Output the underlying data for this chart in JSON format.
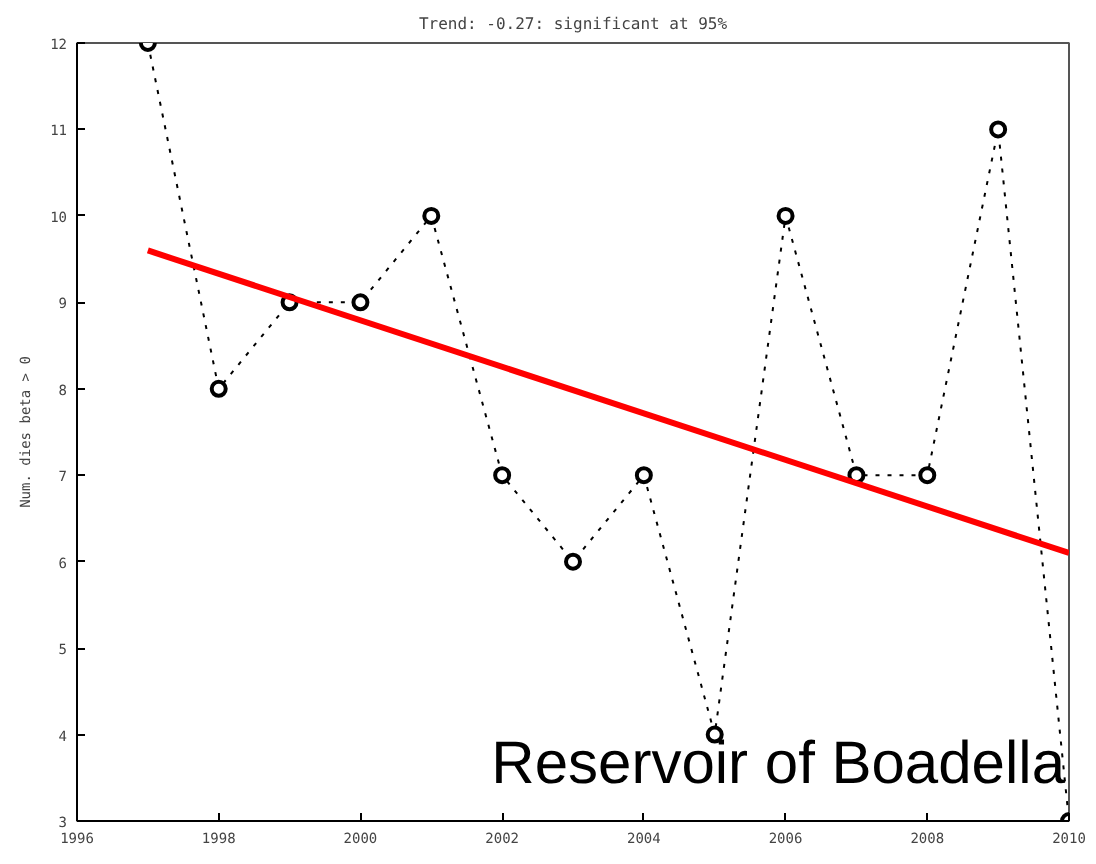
{
  "chart_data": {
    "type": "line",
    "title": "Trend: -0.27: significant at 95%",
    "ylabel": "Num. dies beta > 0",
    "x": [
      1997,
      1998,
      1999,
      2000,
      2001,
      2002,
      2003,
      2004,
      2005,
      2006,
      2007,
      2008,
      2009,
      2010
    ],
    "series": [
      {
        "color": "#000000",
        "values": [
          12,
          8,
          9,
          9,
          10,
          7,
          6,
          7,
          4,
          10,
          7,
          7,
          11,
          3
        ],
        "marker": "circle",
        "line_style": "dotted"
      },
      {
        "type": "line",
        "color": "#ff0000",
        "x": [
          1997,
          2010
        ],
        "values": [
          9.6,
          6.1
        ],
        "marker": "none",
        "line_style": "solid"
      }
    ],
    "xlim": [
      1996,
      2010
    ],
    "ylim": [
      3,
      12
    ],
    "xticks": [
      1996,
      1998,
      2000,
      2002,
      2004,
      2006,
      2008,
      2010
    ],
    "yticks": [
      3,
      4,
      5,
      6,
      7,
      8,
      9,
      10,
      11,
      12
    ],
    "grid": false,
    "annotations": [
      "Reservoir of Boadella"
    ]
  }
}
